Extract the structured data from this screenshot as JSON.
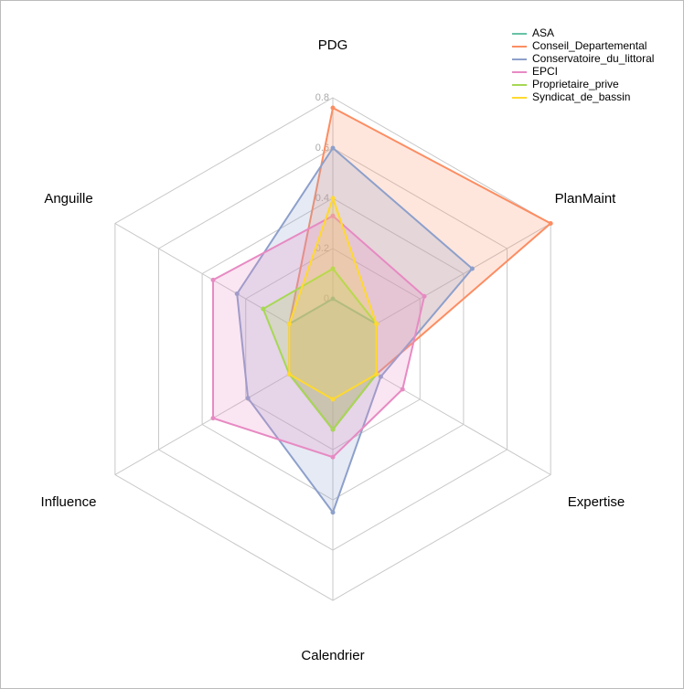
{
  "chart_data": {
    "type": "radar",
    "categories": [
      "PDG",
      "PlanMaint",
      "Expertise",
      "Calendrier",
      "Influence",
      "Anguille"
    ],
    "ylim": [
      0,
      0.8
    ],
    "yticks": [
      0,
      0.2,
      0.4,
      0.6,
      0.8
    ],
    "grid": true,
    "legend": "top-right",
    "series": [
      {
        "name": "ASA",
        "color": "#66c2a5",
        "values": [
          0,
          0,
          0,
          0.12,
          0,
          0
        ]
      },
      {
        "name": "Conseil_Departemental",
        "color": "#fc8d62",
        "values": [
          0.76,
          0.8,
          0,
          0.12,
          0,
          0
        ]
      },
      {
        "name": "Conservatoire_du_littoral",
        "color": "#8da0cb",
        "values": [
          0.6,
          0.44,
          0.02,
          0.45,
          0.19,
          0.24
        ]
      },
      {
        "name": "EPCI",
        "color": "#e78ac3",
        "values": [
          0.33,
          0.22,
          0.12,
          0.23,
          0.35,
          0.35
        ]
      },
      {
        "name": "Proprietaire_prive",
        "color": "#a6d854",
        "values": [
          0.12,
          0,
          0,
          0.12,
          0,
          0.12
        ]
      },
      {
        "name": "Syndicat_de_bassin",
        "color": "#ffd92f",
        "values": [
          0.4,
          0,
          0,
          0,
          0,
          0
        ]
      }
    ]
  }
}
